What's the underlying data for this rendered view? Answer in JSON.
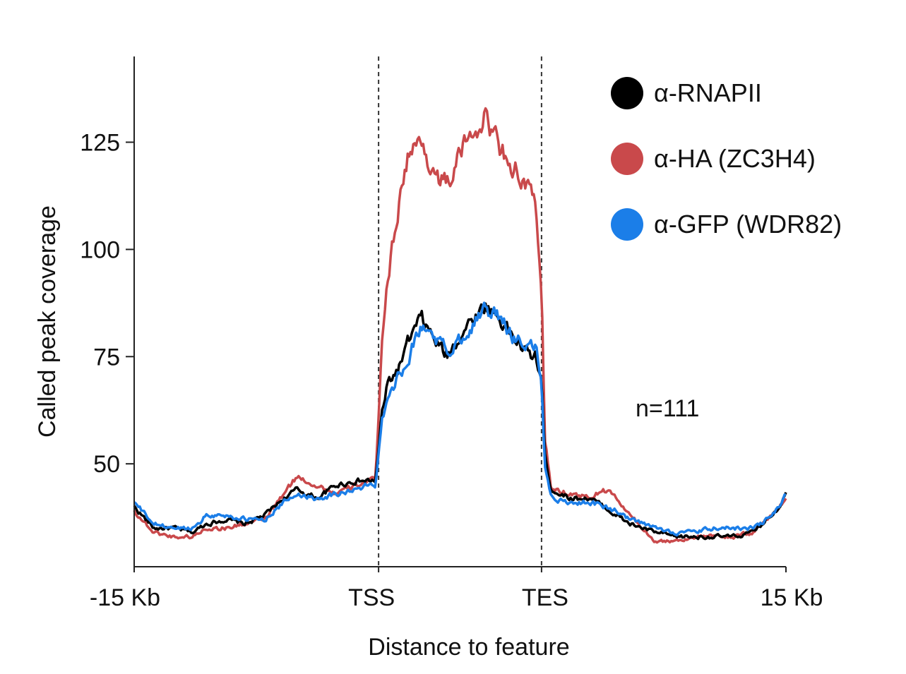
{
  "chart_data": {
    "type": "line",
    "title": "",
    "xlabel": "Distance to feature",
    "ylabel": "Called peak coverage",
    "ylim": [
      26,
      145
    ],
    "y_ticks": [
      50,
      75,
      100,
      125
    ],
    "y_tick_labels": [
      "50",
      "75",
      "100",
      "125"
    ],
    "x_ticks": [
      0,
      0.375,
      0.625,
      1
    ],
    "x_tick_labels": [
      "-15 Kb",
      "TSS",
      "TES",
      "15 Kb"
    ],
    "vertical_markers": [
      0.375,
      0.625
    ],
    "grid": false,
    "legend_position": "top-right",
    "annotation": "n=111",
    "profile_x": [
      0,
      0.03,
      0.06,
      0.09,
      0.11,
      0.14,
      0.17,
      0.2,
      0.23,
      0.25,
      0.28,
      0.31,
      0.34,
      0.36,
      0.37,
      0.375,
      0.38,
      0.39,
      0.405,
      0.42,
      0.44,
      0.46,
      0.48,
      0.5,
      0.52,
      0.54,
      0.56,
      0.58,
      0.6,
      0.615,
      0.625,
      0.63,
      0.64,
      0.67,
      0.7,
      0.72,
      0.74,
      0.76,
      0.8,
      0.83,
      0.86,
      0.89,
      0.92,
      0.95,
      0.97,
      0.99,
      1
    ],
    "series": [
      {
        "name": "α-RNAPII",
        "color": "#000000",
        "values": [
          40,
          35,
          35,
          34,
          36,
          37,
          36,
          38,
          42,
          44,
          42,
          45,
          46,
          46,
          46,
          53,
          62,
          69,
          72,
          78,
          84,
          79,
          75,
          80,
          84,
          87,
          84,
          80,
          76,
          75,
          70,
          52,
          44,
          42,
          42,
          40,
          38,
          36,
          34,
          33,
          33,
          33,
          33,
          34,
          37,
          40,
          44
        ]
      },
      {
        "name": "α-HA (ZC3H4)",
        "color": "#c9494b",
        "values": [
          39,
          34,
          33,
          33,
          35,
          35,
          36,
          37,
          43,
          47,
          45,
          43,
          45,
          46,
          46,
          60,
          80,
          94,
          110,
          122,
          125,
          118,
          115,
          122,
          128,
          131,
          124,
          120,
          115,
          110,
          92,
          56,
          44,
          43,
          42,
          44,
          42,
          38,
          32,
          32,
          33,
          33,
          33,
          34,
          37,
          40,
          42
        ]
      },
      {
        "name": "α-GFP (WDR82)",
        "color": "#1b7ee8",
        "values": [
          41,
          36,
          35,
          35,
          38,
          38,
          37,
          37,
          41,
          43,
          42,
          43,
          44,
          45,
          45,
          53,
          60,
          67,
          70,
          75,
          82,
          80,
          76,
          79,
          83,
          86,
          84,
          80,
          78,
          77,
          70,
          50,
          42,
          41,
          41,
          40,
          39,
          37,
          35,
          34,
          34,
          35,
          35,
          35,
          37,
          40,
          43
        ]
      }
    ]
  }
}
